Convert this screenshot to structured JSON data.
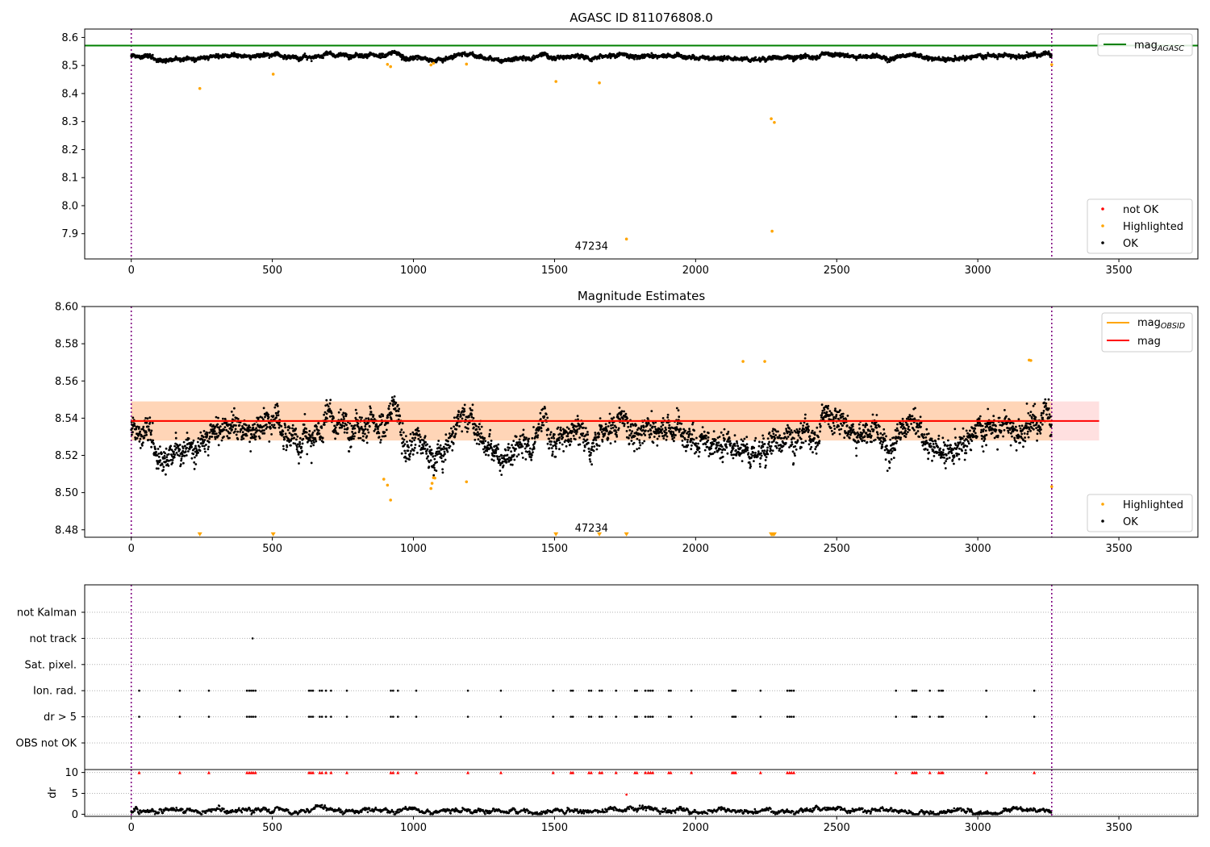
{
  "chart_data": [
    {
      "type": "scatter",
      "title": "AGASC ID 811076808.0",
      "xlim": [
        -165,
        3780
      ],
      "ylim": [
        7.81,
        8.63
      ],
      "xticks": [
        0,
        500,
        1000,
        1500,
        2000,
        2500,
        3000,
        3500
      ],
      "yticks": [
        7.9,
        8.0,
        8.1,
        8.2,
        8.3,
        8.4,
        8.5,
        8.6
      ],
      "n_points": 3262,
      "obsid_bounds": [
        0,
        3262
      ],
      "obsid_label": {
        "text": "47234",
        "x": 1631,
        "y": 7.86
      },
      "baseline": {
        "name": "mag",
        "sub": "AGASC",
        "value": 8.571,
        "color": "#008000"
      },
      "ok_level": 8.534,
      "highlighted": {
        "x": [
          243,
          503,
          908,
          919,
          1062,
          1071,
          1188,
          1505,
          1659,
          1755,
          2268,
          2279,
          2271,
          3262
        ],
        "y": [
          8.418,
          8.469,
          8.504,
          8.496,
          8.502,
          8.508,
          8.505,
          8.443,
          8.438,
          7.881,
          8.31,
          8.297,
          7.909,
          8.503
        ]
      },
      "series": [
        {
          "name": "not OK",
          "color": "#ff0000"
        },
        {
          "name": "Highlighted",
          "color": "#ffa500"
        },
        {
          "name": "OK",
          "color": "#000000"
        }
      ],
      "legend": "lower right"
    },
    {
      "type": "scatter",
      "title": "Magnitude Estimates",
      "xlim": [
        -165,
        3780
      ],
      "ylim": [
        8.476,
        8.6
      ],
      "xticks": [
        0,
        500,
        1000,
        1500,
        2000,
        2500,
        3000,
        3500
      ],
      "yticks": [
        8.48,
        8.5,
        8.52,
        8.54,
        8.56,
        8.58,
        8.6
      ],
      "obsid_label": {
        "text": "47234",
        "x": 1631,
        "y": 8.4795
      },
      "mag": {
        "name": "mag",
        "value": 8.5385,
        "band": [
          8.528,
          8.549
        ],
        "xrange": [
          0,
          3430
        ],
        "color": "#ff0000"
      },
      "mag_obsid": {
        "name": "mag",
        "sub": "OBSID",
        "value": 8.5385,
        "band": [
          8.528,
          8.549
        ],
        "xrange": [
          0,
          3262
        ],
        "color": "#ffa500"
      },
      "highlighted": {
        "x": [
          2168,
          2245,
          3182,
          3188,
          3262,
          895,
          908,
          919,
          1062,
          1066,
          1071,
          1076,
          1188
        ],
        "y": [
          8.5705,
          8.5705,
          8.5712,
          8.571,
          8.5032,
          8.5072,
          8.504,
          8.496,
          8.5022,
          8.505,
          8.508,
          8.5078,
          8.5058
        ]
      },
      "offscale_x": [
        243,
        503,
        1505,
        1659,
        1755,
        2268,
        2271,
        2275,
        2279
      ],
      "series": [
        {
          "name": "Highlighted",
          "color": "#ffa500"
        },
        {
          "name": "OK",
          "color": "#000000"
        }
      ],
      "legend": "lower right"
    },
    {
      "type": "scatter",
      "title": "",
      "xlim": [
        -165,
        3780
      ],
      "categories": [
        "not Kalman",
        "not track",
        "Sat. pixel.",
        "Ion. rad.",
        "dr > 5",
        "OBS not OK"
      ],
      "flags": {
        "not track": [
          430
        ],
        "Ion. rad.": [
          28,
          172,
          275,
          410,
          418,
          425,
          432,
          440,
          630,
          637,
          644,
          668,
          676,
          690,
          708,
          764,
          920,
          928,
          945,
          1010,
          1193,
          1310,
          1495,
          1558,
          1565,
          1622,
          1630,
          1660,
          1668,
          1718,
          1785,
          1792,
          1822,
          1832,
          1840,
          1848,
          1905,
          1912,
          1985,
          2130,
          2136,
          2142,
          2230,
          2325,
          2333,
          2340,
          2348,
          2710,
          2768,
          2775,
          2782,
          2830,
          2862,
          2870,
          2876,
          3030,
          3200
        ],
        "dr > 5": [
          28,
          172,
          275,
          410,
          418,
          425,
          432,
          440,
          630,
          637,
          644,
          668,
          676,
          690,
          708,
          764,
          920,
          928,
          945,
          1010,
          1193,
          1310,
          1495,
          1558,
          1565,
          1622,
          1630,
          1660,
          1668,
          1718,
          1785,
          1792,
          1822,
          1832,
          1840,
          1848,
          1905,
          1912,
          1985,
          2130,
          2136,
          2142,
          2230,
          2325,
          2333,
          2340,
          2348,
          2710,
          2768,
          2775,
          2782,
          2830,
          2862,
          2870,
          2876,
          3030,
          3200
        ]
      },
      "obsid_bounds": [
        0,
        3262
      ]
    },
    {
      "type": "scatter",
      "title": "",
      "ylabel": "dr",
      "xlim": [
        -165,
        3780
      ],
      "ylim": [
        -0.5,
        10.7
      ],
      "xticks": [
        0,
        500,
        1000,
        1500,
        2000,
        2500,
        3000,
        3500
      ],
      "yticks": [
        0,
        5,
        10
      ],
      "clip_value": 10,
      "outlier": {
        "x": 1755,
        "y": 4.7
      },
      "typical_dr": 0.8,
      "obsid_bounds": [
        0,
        3262
      ]
    }
  ]
}
